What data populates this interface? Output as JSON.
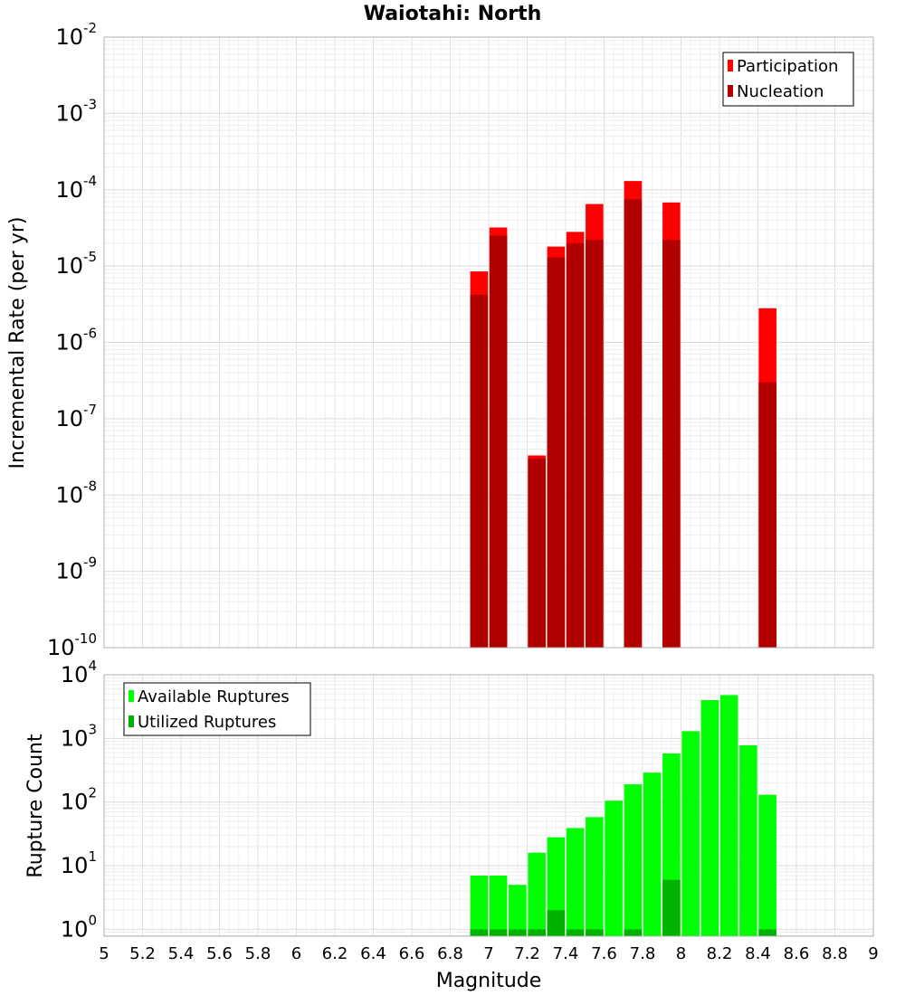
{
  "chart_data": [
    {
      "type": "bar",
      "title": "Waiotahi: North",
      "xlabel": "",
      "ylabel": "Incremental Rate (per yr)",
      "xlim": [
        5,
        9
      ],
      "ylim": [
        1e-10,
        0.01
      ],
      "yscale": "log",
      "grid": true,
      "legend_position": "top-right",
      "x": [
        6.95,
        7.05,
        7.25,
        7.35,
        7.45,
        7.55,
        7.75,
        7.95,
        8.45
      ],
      "series": [
        {
          "name": "Participation",
          "color": "#ff0000",
          "values": [
            8.5e-06,
            3.2e-05,
            3.3e-08,
            1.8e-05,
            2.8e-05,
            6.5e-05,
            0.00013,
            6.8e-05,
            2.8e-06
          ]
        },
        {
          "name": "Nucleation",
          "color": "#b20000",
          "values": [
            4.2e-06,
            2.5e-05,
            3e-08,
            1.3e-05,
            2e-05,
            2.2e-05,
            7.5e-05,
            2.2e-05,
            3e-07
          ]
        }
      ],
      "y_ticks": [
        {
          "base": "10",
          "exp": "-2"
        },
        {
          "base": "10",
          "exp": "-3"
        },
        {
          "base": "10",
          "exp": "-4"
        },
        {
          "base": "10",
          "exp": "-5"
        },
        {
          "base": "10",
          "exp": "-6"
        },
        {
          "base": "10",
          "exp": "-7"
        },
        {
          "base": "10",
          "exp": "-8"
        },
        {
          "base": "10",
          "exp": "-9"
        },
        {
          "base": "10",
          "exp": "-10"
        }
      ]
    },
    {
      "type": "bar",
      "title": "",
      "xlabel": "Magnitude",
      "ylabel": "Rupture Count",
      "xlim": [
        5,
        9
      ],
      "ylim": [
        0.78,
        10000
      ],
      "yscale": "log",
      "grid": true,
      "legend_position": "top-left",
      "x": [
        6.95,
        7.05,
        7.15,
        7.25,
        7.35,
        7.45,
        7.55,
        7.65,
        7.75,
        7.85,
        7.95,
        8.05,
        8.15,
        8.25,
        8.35,
        8.45
      ],
      "series": [
        {
          "name": "Available Ruptures",
          "color": "#00ff00",
          "values": [
            7,
            7,
            5,
            16,
            28,
            39,
            58,
            105,
            190,
            290,
            580,
            1300,
            4000,
            4800,
            780,
            130
          ]
        },
        {
          "name": "Utilized Ruptures",
          "color": "#00b200",
          "values": [
            1,
            1,
            1,
            1,
            2,
            1,
            1,
            0,
            1,
            0,
            6,
            0,
            0,
            0,
            0,
            1
          ]
        }
      ],
      "x_ticks": [
        "5",
        "5.2",
        "5.4",
        "5.6",
        "5.8",
        "6",
        "6.2",
        "6.4",
        "6.6",
        "6.8",
        "7",
        "7.2",
        "7.4",
        "7.6",
        "7.8",
        "8",
        "8.2",
        "8.4",
        "8.6",
        "8.8",
        "9"
      ],
      "y_ticks": [
        {
          "base": "10",
          "exp": "4"
        },
        {
          "base": "10",
          "exp": "3"
        },
        {
          "base": "10",
          "exp": "2"
        },
        {
          "base": "10",
          "exp": "1"
        },
        {
          "base": "10",
          "exp": "0"
        }
      ]
    }
  ]
}
